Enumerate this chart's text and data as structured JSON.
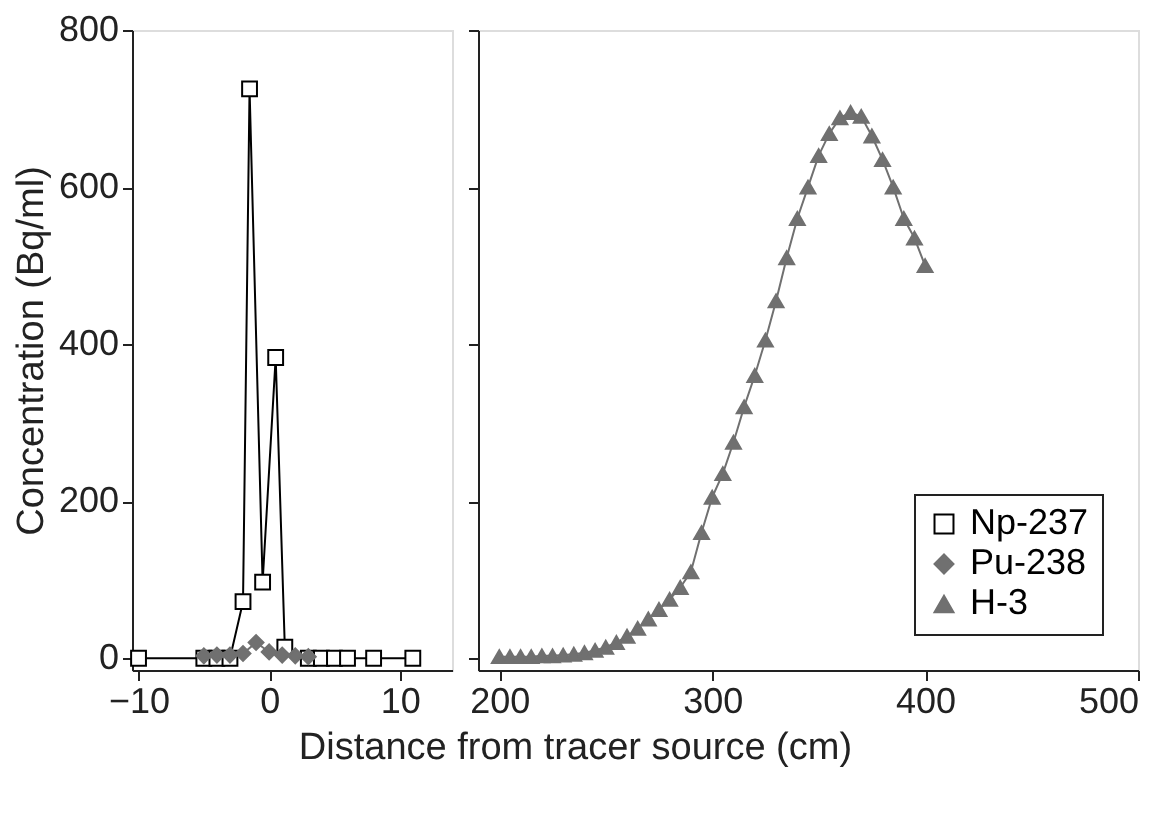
{
  "chart_data": [
    {
      "type": "line",
      "ylabel": "Concentration (Bq/ml)",
      "xlim": [
        -10.5,
        14
      ],
      "xticks": [
        -10,
        0,
        10
      ],
      "ylim": [
        -15,
        800
      ],
      "yticks": [
        0,
        200,
        400,
        600,
        800
      ],
      "legend": "bottom right",
      "series": [
        {
          "name": "Np-237",
          "color": "#000000",
          "marker": "square",
          "x": [
            -10,
            -5,
            -4,
            -3,
            -2,
            -1.5,
            -0.5,
            0.5,
            1.2,
            3,
            4,
            5,
            6,
            8,
            11
          ],
          "values": [
            0,
            0,
            0,
            0,
            72,
            725,
            97,
            383,
            14,
            0,
            0,
            0,
            0,
            0,
            0
          ]
        },
        {
          "name": "Pu-238",
          "color": "#707070",
          "marker": "diamond",
          "x": [
            -5,
            -4,
            -3,
            -2,
            -1,
            0,
            1,
            2,
            3
          ],
          "values": [
            3,
            4,
            4,
            6,
            20,
            8,
            4,
            3,
            2
          ]
        }
      ]
    },
    {
      "type": "line",
      "xlabel": "Distance from tracer source (cm)",
      "xlim": [
        190,
        500
      ],
      "xticks": [
        200,
        300,
        400,
        500
      ],
      "ylim": [
        -15,
        800
      ],
      "yticks": [
        0,
        200,
        400,
        600,
        800
      ],
      "tick_labels": "x",
      "legend": "bottom right",
      "series": [
        {
          "name": "H-3",
          "color": "#707070",
          "marker": "triangle",
          "x": [
            200,
            205,
            210,
            215,
            220,
            225,
            230,
            235,
            240,
            245,
            250,
            255,
            260,
            265,
            270,
            275,
            280,
            285,
            290,
            295,
            300,
            305,
            310,
            315,
            320,
            325,
            330,
            335,
            340,
            345,
            350,
            355,
            360,
            365,
            370,
            375,
            380,
            385,
            390,
            395,
            400
          ],
          "values": [
            2,
            2,
            2,
            2,
            3,
            3,
            4,
            5,
            7,
            10,
            14,
            20,
            28,
            38,
            50,
            62,
            75,
            90,
            110,
            160,
            205,
            235,
            275,
            320,
            360,
            405,
            455,
            510,
            560,
            600,
            640,
            668,
            688,
            695,
            690,
            665,
            635,
            600,
            560,
            535,
            500
          ]
        }
      ]
    }
  ]
}
